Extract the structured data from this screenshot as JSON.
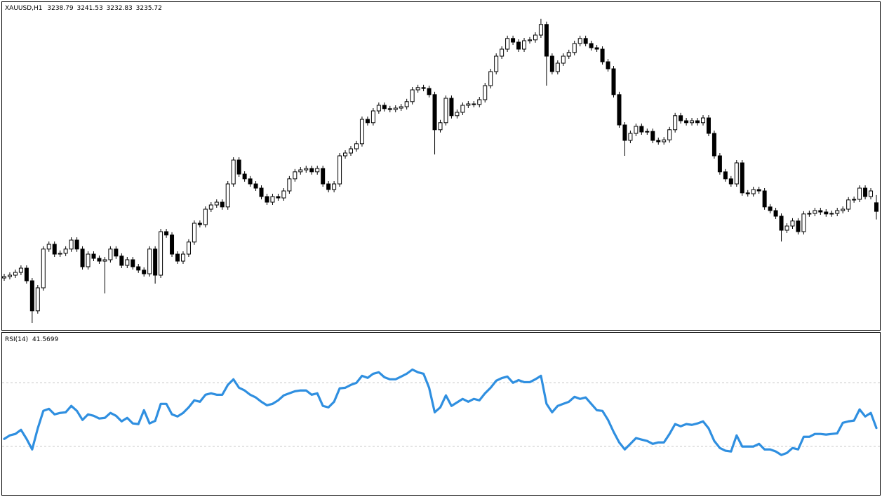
{
  "chart_data": [
    {
      "type": "candlestick",
      "title": "XAUUSD,H1",
      "ylim": [
        3193.5,
        3310
      ],
      "up_color": "#ffffff",
      "down_color": "#000000",
      "wick_color": "#000000",
      "open": [
        3212,
        3212.5,
        3213,
        3214,
        3215.5,
        3211,
        3200.3,
        3208.5,
        3222.3,
        3224,
        3220.5,
        3220.8,
        3222.3,
        3225.5,
        3222.3,
        3216,
        3220.5,
        3219,
        3218,
        3218.5,
        3222.3,
        3219.8,
        3216.5,
        3218.5,
        3216,
        3214.8,
        3213.5,
        3222.3,
        3213,
        3228.5,
        3227.3,
        3220.5,
        3218,
        3220.5,
        3224.8,
        3231.5,
        3231,
        3236.5,
        3238,
        3239,
        3237.3,
        3245.5,
        3254,
        3249,
        3247.3,
        3245.5,
        3244,
        3241,
        3239,
        3241,
        3240.5,
        3243,
        3247.3,
        3249.8,
        3250.5,
        3251,
        3249.8,
        3251,
        3245.5,
        3243.5,
        3245.5,
        3255.5,
        3256.5,
        3258,
        3259.8,
        3268.5,
        3267.3,
        3271.5,
        3273.5,
        3272.3,
        3272,
        3272.5,
        3273,
        3274.8,
        3279,
        3279.8,
        3279.5,
        3277.3,
        3264.8,
        3267.3,
        3276,
        3269.8,
        3271,
        3273.5,
        3274,
        3273.8,
        3275.5,
        3280.5,
        3285.5,
        3291,
        3293.5,
        3297.3,
        3296,
        3293.5,
        3296.5,
        3296.8,
        3298.5,
        3302.3,
        3291,
        3285.5,
        3288.5,
        3291,
        3292.3,
        3295.5,
        3297.3,
        3295.5,
        3294,
        3293.5,
        3289,
        3286.5,
        3277.3,
        3266.5,
        3261,
        3263.5,
        3266,
        3264,
        3264.2,
        3261,
        3260.5,
        3261.2,
        3264.8,
        3269.8,
        3268,
        3267.3,
        3268,
        3267.3,
        3269,
        3263.5,
        3255.5,
        3249.8,
        3247.3,
        3245.5,
        3253,
        3242.3,
        3242,
        3243.5,
        3243,
        3237.3,
        3236,
        3234,
        3229,
        3230.5,
        3232.3,
        3228.5,
        3234.8,
        3235,
        3236,
        3235.5,
        3234.8,
        3235,
        3236,
        3236.5,
        3239.8,
        3240,
        3244,
        3241,
        3238.79
      ],
      "high": [
        3213.5,
        3214,
        3215,
        3216.5,
        3216.5,
        3212,
        3209.5,
        3223.3,
        3225,
        3225,
        3221.8,
        3223.3,
        3226.5,
        3226.5,
        3223.3,
        3221.5,
        3221.5,
        3220,
        3219.5,
        3223.3,
        3223.3,
        3220.8,
        3219.5,
        3219.5,
        3217,
        3215.8,
        3223.3,
        3223.3,
        3229.5,
        3229.5,
        3228.3,
        3221.5,
        3221.5,
        3225.8,
        3232.5,
        3232.5,
        3237.5,
        3239,
        3240,
        3240,
        3246.5,
        3255,
        3255,
        3250,
        3248.3,
        3246.5,
        3245,
        3242,
        3242,
        3242,
        3244,
        3248.3,
        3250.8,
        3251.5,
        3252,
        3252,
        3252,
        3252,
        3246.5,
        3246.5,
        3256.5,
        3257.5,
        3259,
        3260.8,
        3269.5,
        3269.5,
        3272.5,
        3274.5,
        3274.5,
        3273.3,
        3273.5,
        3274,
        3275.8,
        3280,
        3280.8,
        3280.8,
        3280.5,
        3278.3,
        3268.3,
        3277,
        3277,
        3272,
        3274.5,
        3275,
        3275,
        3276.5,
        3281.5,
        3286.5,
        3292,
        3294.5,
        3298.3,
        3298.3,
        3297,
        3297.5,
        3297.8,
        3299.5,
        3304.3,
        3303.3,
        3292,
        3289.5,
        3292,
        3293.3,
        3296.5,
        3298.3,
        3298.3,
        3296.5,
        3295,
        3294.5,
        3290,
        3287.5,
        3278.3,
        3267.5,
        3264.5,
        3267,
        3267,
        3265.2,
        3265.2,
        3262,
        3262.2,
        3265.8,
        3270.8,
        3270.8,
        3269,
        3269,
        3269,
        3270,
        3270,
        3264.5,
        3256.5,
        3250.8,
        3248.3,
        3254,
        3254,
        3243.3,
        3244.5,
        3244.5,
        3244,
        3238.3,
        3237,
        3235,
        3231.5,
        3233.3,
        3233.3,
        3235.8,
        3236,
        3237,
        3237,
        3236.5,
        3236,
        3237,
        3237.5,
        3240.8,
        3241,
        3245,
        3245,
        3244,
        3241.53
      ],
      "low": [
        3211,
        3211.5,
        3212,
        3213,
        3210,
        3196,
        3199.3,
        3207.5,
        3221.3,
        3219.5,
        3219.5,
        3219.8,
        3221.3,
        3221.3,
        3215,
        3215,
        3218,
        3217,
        3206.5,
        3217.5,
        3218.8,
        3215.5,
        3215.5,
        3215,
        3213.8,
        3212.5,
        3212.5,
        3210,
        3212,
        3226.3,
        3219.5,
        3217,
        3217,
        3219.5,
        3223.8,
        3230,
        3230,
        3235.5,
        3237,
        3236.3,
        3236.3,
        3244.5,
        3248,
        3246.3,
        3244.5,
        3243,
        3240,
        3238,
        3238,
        3239.5,
        3239.5,
        3242,
        3246.3,
        3248.8,
        3249.5,
        3248.8,
        3248.8,
        3244.5,
        3242.5,
        3242.5,
        3244.5,
        3254.5,
        3255.5,
        3257,
        3258.8,
        3266.3,
        3266.3,
        3270.5,
        3271.3,
        3271,
        3271,
        3271.5,
        3272,
        3273.8,
        3278,
        3278.5,
        3276.3,
        3256,
        3263.8,
        3266.3,
        3268.8,
        3268.8,
        3270,
        3272.5,
        3272.8,
        3272.8,
        3274.5,
        3279.5,
        3284.5,
        3290,
        3292.5,
        3295,
        3292.5,
        3292.5,
        3295.5,
        3295.8,
        3297.5,
        3280.5,
        3284.5,
        3284.5,
        3287.5,
        3290,
        3291.3,
        3294.5,
        3294.5,
        3293,
        3292.5,
        3288,
        3285.5,
        3276.3,
        3265.5,
        3255.5,
        3260,
        3262.5,
        3263,
        3263,
        3260,
        3259.5,
        3259.5,
        3260.2,
        3263.8,
        3267,
        3266.3,
        3266.3,
        3266.3,
        3266.3,
        3262.5,
        3254.5,
        3248.8,
        3246.3,
        3244.5,
        3244.5,
        3241.3,
        3241,
        3241,
        3242,
        3236.3,
        3235,
        3233,
        3225,
        3228,
        3229.5,
        3227.5,
        3227.5,
        3233.8,
        3234,
        3234.5,
        3233.8,
        3233.8,
        3234,
        3235,
        3235.5,
        3238.8,
        3239,
        3240,
        3240,
        3232.83
      ],
      "close": [
        3212.5,
        3213,
        3214,
        3215.5,
        3211,
        3200.3,
        3208.5,
        3222.3,
        3224,
        3220.5,
        3220.8,
        3222.3,
        3225.5,
        3222.3,
        3216,
        3220.5,
        3219,
        3218,
        3218.5,
        3222.3,
        3219.8,
        3216.5,
        3218.5,
        3216,
        3214.8,
        3213.5,
        3222.3,
        3213,
        3228.5,
        3227.3,
        3220.5,
        3218,
        3220.5,
        3224.8,
        3231.5,
        3231,
        3236.5,
        3238,
        3239,
        3237.3,
        3245.5,
        3254,
        3249,
        3247.3,
        3245.5,
        3244,
        3241,
        3239,
        3241,
        3240.5,
        3243,
        3247.3,
        3249.8,
        3250.5,
        3251,
        3249.8,
        3251,
        3245.5,
        3243.5,
        3245.5,
        3255.5,
        3256.5,
        3258,
        3259.8,
        3268.5,
        3267.3,
        3271.5,
        3273.5,
        3272.3,
        3272,
        3272.5,
        3273,
        3274.8,
        3279,
        3279.8,
        3279.5,
        3277.3,
        3264.8,
        3267.3,
        3276,
        3269.8,
        3271,
        3273.5,
        3274,
        3273.8,
        3275.5,
        3280.5,
        3285.5,
        3291,
        3293.5,
        3297.3,
        3296,
        3293.5,
        3296.5,
        3296.8,
        3298.5,
        3302.3,
        3291,
        3285.5,
        3288.5,
        3291,
        3292.3,
        3295.5,
        3297.3,
        3295.5,
        3294,
        3293.5,
        3289,
        3286.5,
        3277.3,
        3266.5,
        3261,
        3263.5,
        3266,
        3264,
        3264.2,
        3261,
        3260.5,
        3261.2,
        3264.8,
        3269.8,
        3268,
        3267.3,
        3268,
        3267.3,
        3269,
        3263.5,
        3255.5,
        3249.8,
        3247.3,
        3245.5,
        3253,
        3242.3,
        3242,
        3243.5,
        3243,
        3237.3,
        3236,
        3234,
        3229,
        3230.5,
        3232.3,
        3228.5,
        3234.8,
        3235,
        3236,
        3235.5,
        3234.8,
        3235,
        3236,
        3236.5,
        3239.8,
        3240,
        3244,
        3241,
        3243,
        3235.72
      ]
    },
    {
      "type": "line",
      "title": "RSI(14)",
      "ylim": [
        0,
        100
      ],
      "color": "#2f8fe0",
      "levels": [
        70,
        30
      ],
      "values": [
        34.7,
        36.9,
        37.8,
        40.4,
        34.7,
        28.1,
        41.3,
        52.3,
        53.6,
        50.1,
        51.0,
        51.4,
        55.4,
        52.3,
        46.6,
        50.1,
        49.2,
        47.5,
        47.9,
        51.0,
        49.2,
        45.7,
        47.9,
        44.4,
        44.0,
        52.7,
        44.4,
        46.0,
        56.7,
        56.7,
        50.1,
        48.8,
        51.0,
        54.5,
        58.9,
        58.0,
        62.4,
        63.3,
        62.4,
        62.4,
        68.6,
        72.1,
        66.8,
        65.1,
        62.4,
        60.7,
        58.0,
        55.8,
        56.7,
        58.9,
        62.0,
        63.3,
        64.6,
        65.1,
        65.1,
        62.4,
        63.3,
        55.4,
        54.5,
        58.0,
        66.4,
        66.8,
        68.6,
        69.9,
        74.3,
        73.0,
        75.6,
        76.5,
        73.4,
        72.1,
        72.1,
        73.8,
        75.6,
        78.2,
        76.5,
        75.6,
        66.8,
        51.4,
        54.5,
        62.0,
        55.4,
        57.6,
        59.8,
        58.0,
        59.8,
        58.9,
        63.3,
        66.8,
        71.2,
        72.9,
        73.8,
        69.9,
        71.6,
        70.3,
        70.3,
        72.1,
        74.3,
        56.7,
        51.4,
        55.4,
        56.7,
        58.0,
        61.1,
        59.8,
        60.7,
        56.7,
        52.7,
        52.3,
        46.6,
        39.1,
        32.5,
        28.1,
        31.6,
        35.2,
        34.3,
        33.4,
        31.6,
        32.5,
        32.5,
        37.8,
        44.0,
        42.6,
        44.0,
        43.5,
        44.4,
        45.7,
        41.3,
        33.4,
        29.0,
        27.3,
        26.8,
        36.9,
        29.9,
        29.9,
        29.9,
        31.6,
        28.1,
        28.1,
        26.8,
        24.6,
        25.9,
        29.0,
        28.1,
        36.0,
        36.0,
        37.8,
        37.8,
        37.4,
        37.8,
        38.2,
        44.8,
        45.7,
        46.2,
        53.2,
        48.8,
        51.0,
        41.5699
      ]
    }
  ]
}
